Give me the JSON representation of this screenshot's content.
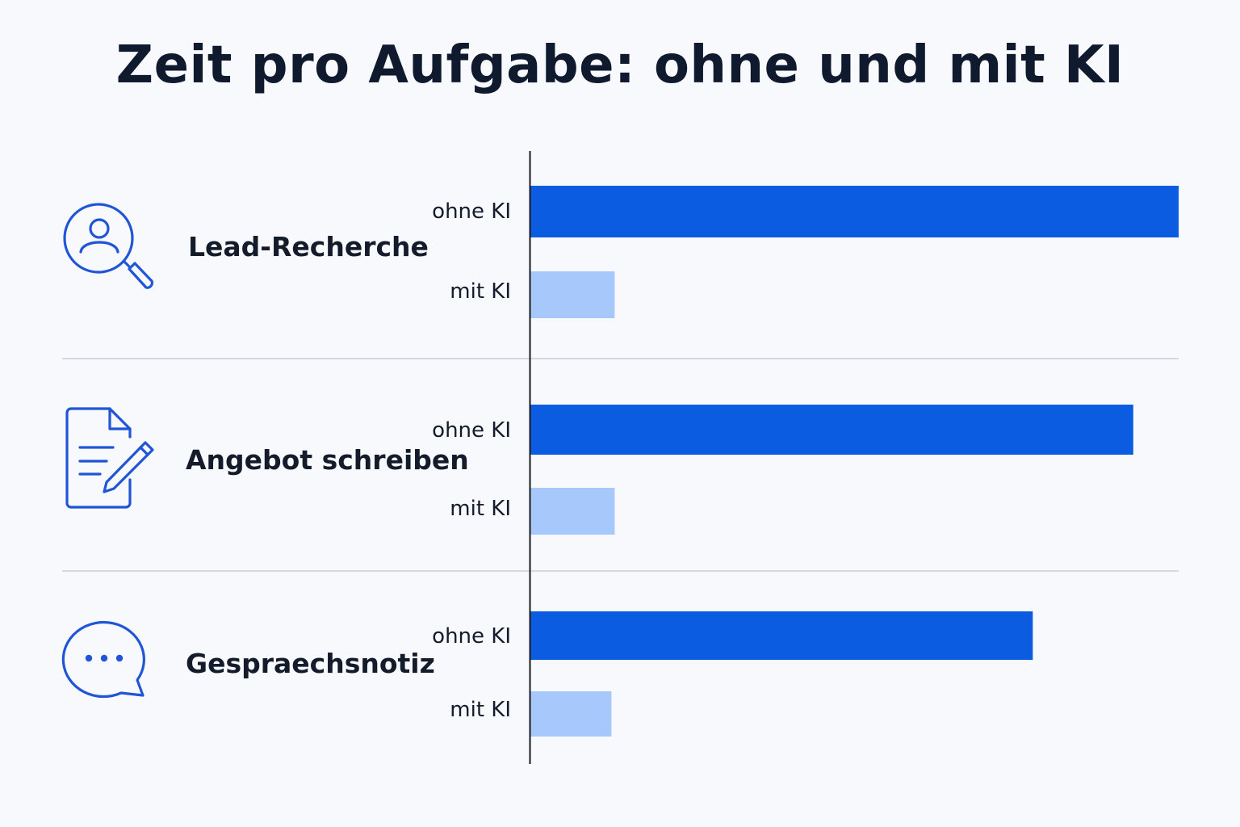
{
  "colors": {
    "background": "#f7f9fc",
    "ohne": "#0b5ce0",
    "mit": "#a6c8fb",
    "icon": "#1f55d6",
    "axis": "#1a1a1a",
    "divider": "#c9cfd6",
    "text": "#141b2b"
  },
  "chart_data": {
    "type": "bar",
    "orientation": "horizontal",
    "title": "Zeit pro Aufgabe: ohne und mit KI",
    "xlabel": "",
    "ylabel": "",
    "grid": false,
    "legend": "none",
    "categories": [
      {
        "label": "Lead-Recherche",
        "icon": "search-person-icon"
      },
      {
        "label": "Angebot schreiben",
        "icon": "document-pen-icon"
      },
      {
        "label": "Gespraechsnotiz",
        "icon": "chat-bubble-icon"
      }
    ],
    "series": [
      {
        "label": "ohne KI",
        "values": [
          100,
          93,
          77.5
        ]
      },
      {
        "label": "mit KI",
        "values": [
          13,
          13,
          12.5
        ]
      }
    ],
    "xlim": [
      0,
      100
    ]
  }
}
